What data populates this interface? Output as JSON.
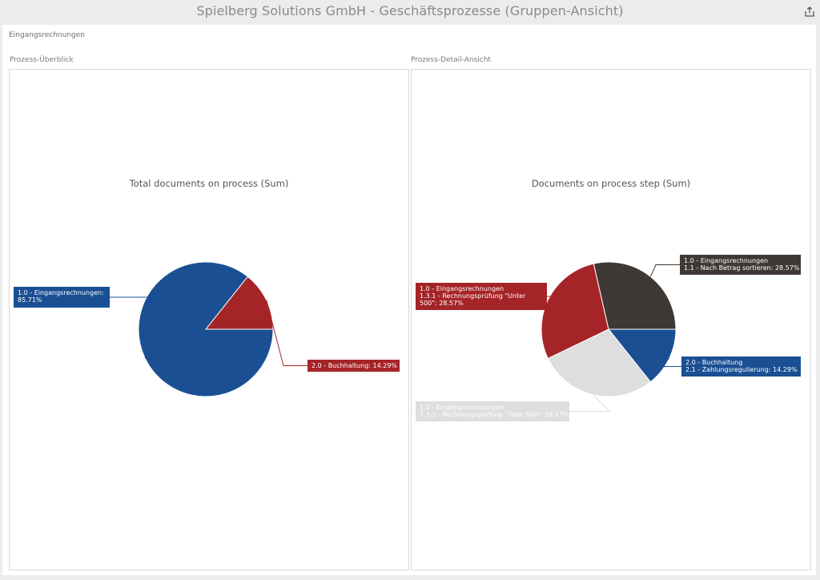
{
  "header": {
    "title": "Spielberg Solutions GmbH - Geschäftsprozesse (Gruppen-Ansicht)",
    "share_icon": "share-export-icon"
  },
  "board": {
    "title": "Eingangsrechnungen"
  },
  "panels": [
    {
      "label": "Prozess-Überblick"
    },
    {
      "label": "Prozess-Detail-Ansicht"
    }
  ],
  "colors": {
    "blue": "#1a4f93",
    "red": "#a52428",
    "dark": "#3f3936",
    "light": "#dedede"
  },
  "chart_data": [
    {
      "type": "pie",
      "title": "Total documents on process (Sum)",
      "slices": [
        {
          "label": "1.0 - Eingangsrechnungen:\n85.71%",
          "value": 85.71,
          "color": "#1a4f93"
        },
        {
          "label": "2.0 - Buchhaltung: 14.29%",
          "value": 14.29,
          "color": "#a52428"
        }
      ]
    },
    {
      "type": "pie",
      "title": "Documents on process step (Sum)",
      "slices": [
        {
          "label": "2.0 - Buchhaltung\n2.1 - Zahlungsregulierung: 14.29%",
          "value": 14.29,
          "color": "#1a4f93"
        },
        {
          "label": "1.0 - Eingangsrechnungen\n1.3.2 - Rechnungsprüfung \"Über 500\": 28.57%",
          "value": 28.57,
          "color": "#dedede"
        },
        {
          "label": "1.0 - Eingangsrechnungen\n1.3.1 - Rechnungsprüfung \"Unter\n500\": 28.57%",
          "value": 28.57,
          "color": "#a52428"
        },
        {
          "label": "1.0 - Eingangsrechnungen\n1.1 - Nach Betrag sortieren: 28.57%",
          "value": 28.57,
          "color": "#3f3936"
        }
      ]
    }
  ]
}
